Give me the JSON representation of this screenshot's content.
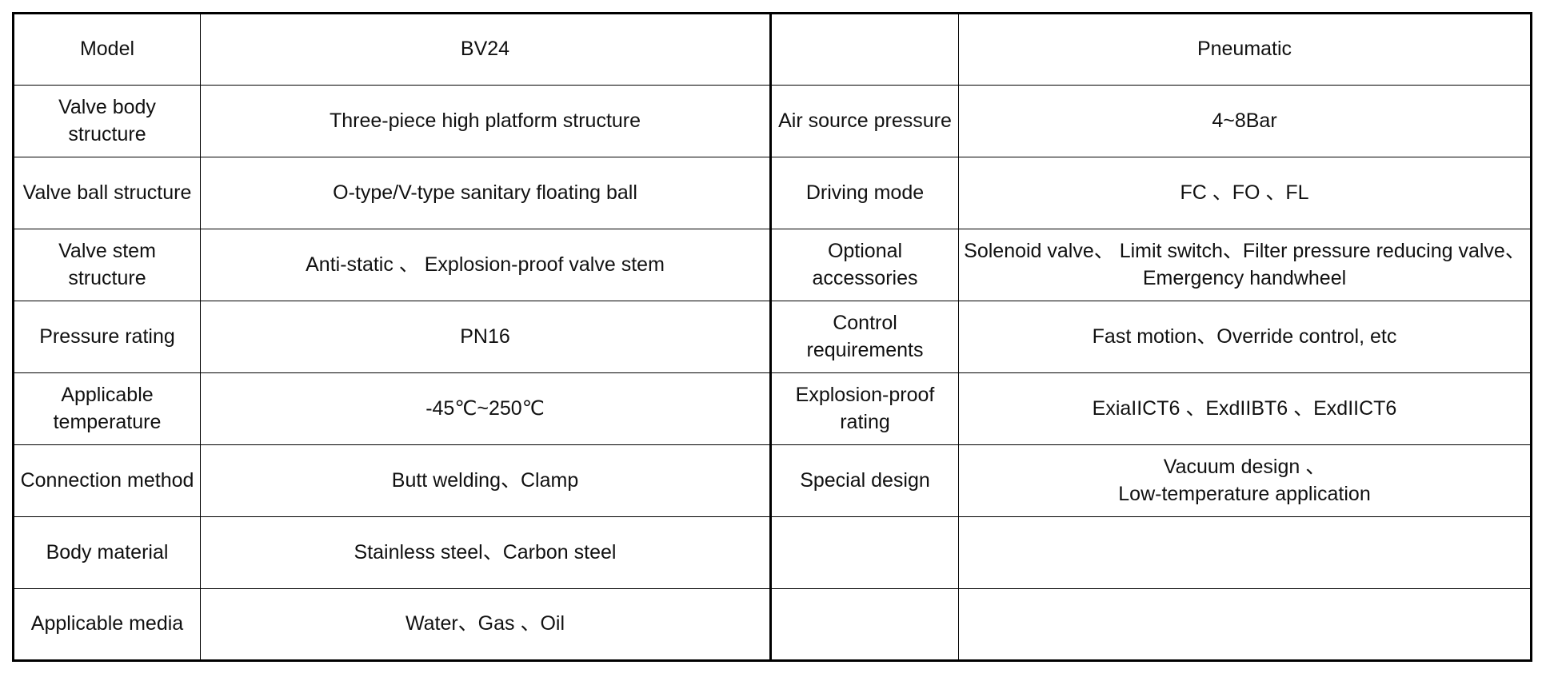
{
  "table": {
    "rows": [
      {
        "l_label": "Model",
        "l_value": "BV24",
        "r_label": "",
        "r_value": "Pneumatic"
      },
      {
        "l_label": "Valve body\nstructure",
        "l_value": "Three-piece high platform structure",
        "r_label": "Air source pressure",
        "r_value": "4~8Bar"
      },
      {
        "l_label": "Valve ball structure",
        "l_value": "O-type/V-type sanitary floating ball",
        "r_label": "Driving mode",
        "r_value": "FC 、FO 、FL"
      },
      {
        "l_label": "Valve stem\nstructure",
        "l_value": "Anti-static 、 Explosion-proof valve stem",
        "r_label": "Optional\naccessories",
        "r_value": "Solenoid valve、 Limit switch、Filter pressure reducing valve、\nEmergency handwheel"
      },
      {
        "l_label": "Pressure rating",
        "l_value": "PN16",
        "r_label": "Control\nrequirements",
        "r_value": "Fast motion、Override control, etc"
      },
      {
        "l_label": "Applicable\ntemperature",
        "l_value": "-45℃~250℃",
        "r_label": "Explosion-proof\nrating",
        "r_value": "ExiaIICT6 、ExdIIBT6 、ExdIICT6"
      },
      {
        "l_label": "Connection method",
        "l_value": "Butt welding、Clamp",
        "r_label": "Special design",
        "r_value": "Vacuum design 、\nLow-temperature application"
      },
      {
        "l_label": "Body material",
        "l_value": "Stainless steel、Carbon steel",
        "r_label": "",
        "r_value": ""
      },
      {
        "l_label": "Applicable media",
        "l_value": "Water、Gas 、Oil",
        "r_label": "",
        "r_value": ""
      }
    ]
  }
}
